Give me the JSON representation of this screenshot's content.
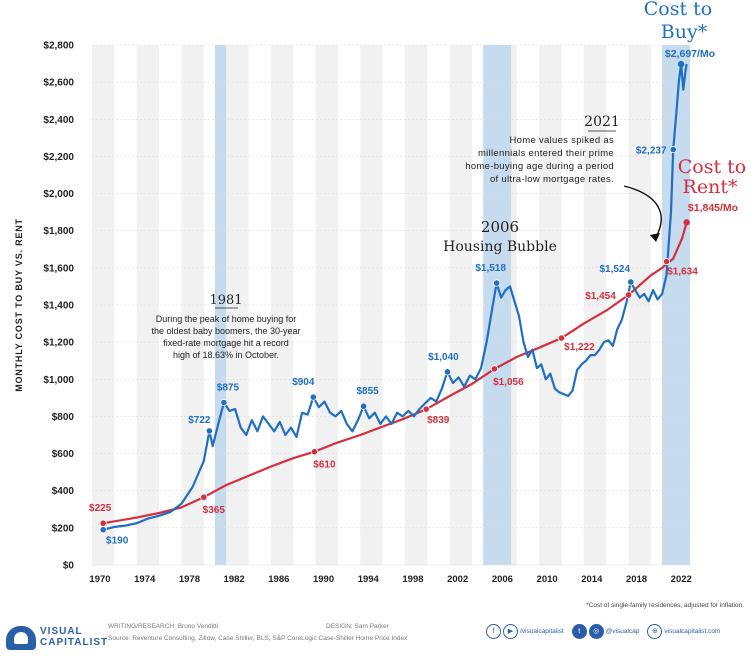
{
  "chart_data": {
    "type": "line",
    "ylabel": "MONTHLY COST TO BUY VS. RENT",
    "xlim": [
      1970,
      2023.5
    ],
    "ylim": [
      0,
      2800
    ],
    "x_ticks": [
      1970,
      1974,
      1978,
      1982,
      1986,
      1990,
      1994,
      1998,
      2002,
      2006,
      2010,
      2014,
      2018,
      2022
    ],
    "x_tick_labels": [
      "1970",
      "1974",
      "1978",
      "1982",
      "1986",
      "1990",
      "1994",
      "1998",
      "2002",
      "2006",
      "2010",
      "2014",
      "2018",
      "2022"
    ],
    "y_ticks": [
      0,
      200,
      400,
      600,
      800,
      1000,
      1200,
      1400,
      1600,
      1800,
      2000,
      2200,
      2400,
      2600,
      2800
    ],
    "y_tick_labels": [
      "$0",
      "$200",
      "$400",
      "$600",
      "$800",
      "$1,000",
      "$1,200",
      "$1,400",
      "$1,600",
      "$1,800",
      "$2,000",
      "$2,200",
      "$2,400",
      "$2,600",
      "$2,800"
    ],
    "alt_bands": [
      [
        1970,
        1972
      ],
      [
        1974,
        1976
      ],
      [
        1978,
        1980
      ],
      [
        1982,
        1984
      ],
      [
        1986,
        1988
      ],
      [
        1990,
        1992
      ],
      [
        1994,
        1996
      ],
      [
        1998,
        2000
      ],
      [
        2002,
        2004
      ],
      [
        2006,
        2008
      ],
      [
        2010,
        2012
      ],
      [
        2014,
        2016
      ],
      [
        2018,
        2020
      ],
      [
        2022,
        2023.5
      ]
    ],
    "highlight_bands": [
      [
        1981,
        1982
      ],
      [
        2005,
        2007.5
      ],
      [
        2021,
        2023.5
      ]
    ],
    "colors": {
      "buy": "#1f6fc2",
      "rent": "#d62f3c",
      "band": "#f1f1f1",
      "highlight": "#c7dbee",
      "grid": "#dddddd",
      "text": "#222222"
    },
    "series": [
      {
        "name": "Cost to Buy",
        "label_top": "Cost to",
        "label_bottom": "Buy*",
        "value_label": "$2,697/Mo",
        "points": [
          [
            1971,
            190
          ],
          [
            1972,
            205
          ],
          [
            1973,
            212
          ],
          [
            1974,
            225
          ],
          [
            1975,
            250
          ],
          [
            1976,
            265
          ],
          [
            1977,
            285
          ],
          [
            1978,
            330
          ],
          [
            1979,
            420
          ],
          [
            1980,
            560
          ],
          [
            1980.5,
            722
          ],
          [
            1980.8,
            640
          ],
          [
            1981.3,
            760
          ],
          [
            1981.8,
            875
          ],
          [
            1982.3,
            830
          ],
          [
            1982.8,
            840
          ],
          [
            1983.3,
            740
          ],
          [
            1983.8,
            700
          ],
          [
            1984.3,
            780
          ],
          [
            1984.8,
            720
          ],
          [
            1985.3,
            800
          ],
          [
            1985.8,
            760
          ],
          [
            1986.3,
            720
          ],
          [
            1986.8,
            770
          ],
          [
            1987.3,
            700
          ],
          [
            1987.8,
            740
          ],
          [
            1988.3,
            690
          ],
          [
            1988.8,
            820
          ],
          [
            1989.3,
            810
          ],
          [
            1989.8,
            904
          ],
          [
            1990.3,
            850
          ],
          [
            1990.8,
            880
          ],
          [
            1991.3,
            820
          ],
          [
            1991.8,
            800
          ],
          [
            1992.3,
            830
          ],
          [
            1992.8,
            760
          ],
          [
            1993.3,
            720
          ],
          [
            1993.8,
            780
          ],
          [
            1994.3,
            855
          ],
          [
            1994.8,
            790
          ],
          [
            1995.3,
            820
          ],
          [
            1995.8,
            760
          ],
          [
            1996.3,
            800
          ],
          [
            1996.8,
            760
          ],
          [
            1997.3,
            820
          ],
          [
            1997.8,
            800
          ],
          [
            1998.3,
            830
          ],
          [
            1998.8,
            800
          ],
          [
            1999.3,
            840
          ],
          [
            1999.8,
            870
          ],
          [
            2000.3,
            900
          ],
          [
            2000.8,
            880
          ],
          [
            2001.3,
            950
          ],
          [
            2001.8,
            1040
          ],
          [
            2002.3,
            980
          ],
          [
            2002.8,
            1010
          ],
          [
            2003.3,
            960
          ],
          [
            2003.8,
            1020
          ],
          [
            2004.3,
            1000
          ],
          [
            2004.8,
            1060
          ],
          [
            2005.3,
            1200
          ],
          [
            2005.8,
            1380
          ],
          [
            2006.2,
            1518
          ],
          [
            2006.6,
            1440
          ],
          [
            2007.0,
            1480
          ],
          [
            2007.4,
            1500
          ],
          [
            2007.8,
            1420
          ],
          [
            2008.2,
            1340
          ],
          [
            2008.6,
            1200
          ],
          [
            2009.0,
            1120
          ],
          [
            2009.4,
            1160
          ],
          [
            2009.8,
            1060
          ],
          [
            2010.2,
            1080
          ],
          [
            2010.6,
            1000
          ],
          [
            2011.0,
            1030
          ],
          [
            2011.4,
            950
          ],
          [
            2011.8,
            930
          ],
          [
            2012.2,
            920
          ],
          [
            2012.6,
            910
          ],
          [
            2013.0,
            940
          ],
          [
            2013.4,
            1050
          ],
          [
            2013.8,
            1080
          ],
          [
            2014.2,
            1100
          ],
          [
            2014.6,
            1130
          ],
          [
            2015.0,
            1130
          ],
          [
            2015.4,
            1160
          ],
          [
            2015.8,
            1200
          ],
          [
            2016.2,
            1210
          ],
          [
            2016.6,
            1180
          ],
          [
            2017.0,
            1270
          ],
          [
            2017.4,
            1320
          ],
          [
            2017.8,
            1410
          ],
          [
            2018.2,
            1524
          ],
          [
            2018.6,
            1480
          ],
          [
            2019.0,
            1440
          ],
          [
            2019.4,
            1460
          ],
          [
            2019.8,
            1420
          ],
          [
            2020.2,
            1480
          ],
          [
            2020.6,
            1430
          ],
          [
            2021.0,
            1460
          ],
          [
            2021.4,
            1560
          ],
          [
            2021.8,
            1900
          ],
          [
            2022.0,
            2237
          ],
          [
            2022.3,
            2450
          ],
          [
            2022.5,
            2600
          ],
          [
            2022.7,
            2697
          ],
          [
            2022.9,
            2560
          ],
          [
            2023.1,
            2660
          ],
          [
            2023.2,
            2697
          ]
        ]
      },
      {
        "name": "Cost to Rent",
        "label_top": "Cost to",
        "label_bottom": "Rent*",
        "value_label": "$1,845/Mo",
        "points": [
          [
            1971,
            225
          ],
          [
            1974,
            255
          ],
          [
            1976,
            280
          ],
          [
            1978,
            310
          ],
          [
            1980,
            365
          ],
          [
            1982,
            430
          ],
          [
            1984,
            480
          ],
          [
            1986,
            530
          ],
          [
            1988,
            575
          ],
          [
            1989.9,
            610
          ],
          [
            1992,
            660
          ],
          [
            1994,
            700
          ],
          [
            1996,
            745
          ],
          [
            1998,
            790
          ],
          [
            1999.9,
            839
          ],
          [
            2002,
            910
          ],
          [
            2004,
            975
          ],
          [
            2006,
            1056
          ],
          [
            2008,
            1120
          ],
          [
            2010,
            1170
          ],
          [
            2012,
            1222
          ],
          [
            2014,
            1300
          ],
          [
            2016,
            1370
          ],
          [
            2018,
            1454
          ],
          [
            2020,
            1560
          ],
          [
            2021,
            1600
          ],
          [
            2022,
            1650
          ],
          [
            2022.8,
            1760
          ],
          [
            2023.2,
            1845
          ]
        ]
      }
    ],
    "point_labels": [
      {
        "x": 1971,
        "y": 225,
        "label": "$225",
        "series": "rent"
      },
      {
        "x": 1971,
        "y": 190,
        "label": "$190",
        "series": "buy"
      },
      {
        "x": 1980,
        "y": 365,
        "label": "$365",
        "series": "rent"
      },
      {
        "x": 1980.5,
        "y": 722,
        "label": "$722",
        "series": "buy"
      },
      {
        "x": 1981.8,
        "y": 875,
        "label": "$875",
        "series": "buy"
      },
      {
        "x": 1989.8,
        "y": 904,
        "label": "$904",
        "series": "buy"
      },
      {
        "x": 1989.9,
        "y": 610,
        "label": "$610",
        "series": "rent"
      },
      {
        "x": 1994.3,
        "y": 855,
        "label": "$855",
        "series": "buy"
      },
      {
        "x": 1999.9,
        "y": 839,
        "label": "$839",
        "series": "rent"
      },
      {
        "x": 2001.8,
        "y": 1040,
        "label": "$1,040",
        "series": "buy"
      },
      {
        "x": 2006.2,
        "y": 1518,
        "label": "$1,518",
        "series": "buy"
      },
      {
        "x": 2006,
        "y": 1056,
        "label": "$1,056",
        "series": "rent"
      },
      {
        "x": 2012,
        "y": 1222,
        "label": "$1,222",
        "series": "rent"
      },
      {
        "x": 2018,
        "y": 1454,
        "label": "$1,454",
        "series": "rent"
      },
      {
        "x": 2018.2,
        "y": 1524,
        "label": "$1,524",
        "series": "buy"
      },
      {
        "x": 2021.4,
        "y": 1634,
        "label": "$1,634",
        "series": "rent"
      },
      {
        "x": 2022.0,
        "y": 2237,
        "label": "$2,237",
        "series": "buy"
      }
    ],
    "annotations": [
      {
        "title": "1981",
        "lines": [
          "During the peak of home buying for",
          "the oldest baby boomers, the 30-year",
          "fixed-rate mortgage hit a record",
          "high of 18.63% in October."
        ]
      },
      {
        "title": "2006",
        "lines": [
          "Housing Bubble"
        ]
      },
      {
        "title": "2021",
        "lines": [
          "Home values spiked as",
          "millennials entered their prime",
          "home-buying age during a period",
          "of ultra-low mortgage rates."
        ]
      }
    ]
  },
  "footer": {
    "logo_line1": "VISUAL",
    "logo_line2": "CAPITALIST",
    "research": "WRITING/RESEARCH: Bruno Venditti",
    "design": "DESIGN: Sam Parker",
    "source": "Source: Reventure Consulting, Zillow, Case Shiller, BLS, S&P CoreLogic Case-Shiller Home Price Index",
    "footnote": "*Cost of single-family residences, adjusted for inflation.",
    "social_handle_1": "/visualcapitalist",
    "social_handle_2": "@visualcap",
    "website": "visualcapitalist.com"
  }
}
